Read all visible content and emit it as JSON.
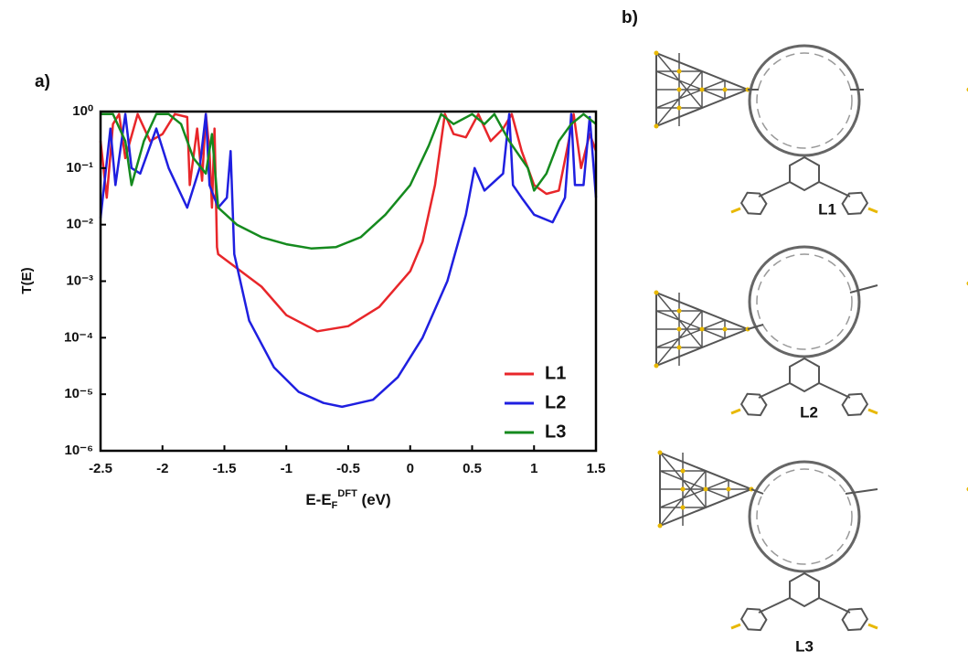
{
  "chart_data": {
    "type": "line",
    "panel_label": "a)",
    "y_label": "T(E)",
    "x_label": {
      "base": "E-E",
      "sub": "F",
      "sup": "DFT",
      "unit": "(eV)"
    },
    "xlim": [
      -2.5,
      1.5
    ],
    "xticks": [
      -2.5,
      -2,
      -1.5,
      -1,
      -0.5,
      0,
      0.5,
      1,
      1.5
    ],
    "ylim": [
      1e-06,
      1
    ],
    "log_y": true,
    "grid": false,
    "legend": "lower right",
    "yticks": [
      {
        "value": 1,
        "label": "10⁰"
      },
      {
        "value": 0.1,
        "label": "10⁻¹"
      },
      {
        "value": 0.01,
        "label": "10⁻²"
      },
      {
        "value": 0.001,
        "label": "10⁻³"
      },
      {
        "value": 0.0001,
        "label": "10⁻⁴"
      },
      {
        "value": 1e-05,
        "label": "10⁻⁵"
      },
      {
        "value": 1e-06,
        "label": "10⁻⁶"
      }
    ],
    "series": [
      {
        "name": "L1",
        "color": "#e8262a",
        "x": [
          -2.5,
          -2.45,
          -2.4,
          -2.35,
          -2.3,
          -2.2,
          -2.1,
          -2.0,
          -1.9,
          -1.8,
          -1.78,
          -1.72,
          -1.68,
          -1.65,
          -1.62,
          -1.6,
          -1.58,
          -1.56,
          -1.55,
          -1.2,
          -1.0,
          -0.75,
          -0.5,
          -0.25,
          0,
          0.1,
          0.2,
          0.28,
          0.35,
          0.45,
          0.55,
          0.65,
          0.75,
          0.82,
          0.9,
          1.0,
          1.1,
          1.2,
          1.28,
          1.32,
          1.38,
          1.45,
          1.5
        ],
        "values": [
          0.3,
          0.03,
          0.6,
          0.9,
          0.15,
          0.9,
          0.3,
          0.4,
          0.9,
          0.8,
          0.05,
          0.5,
          0.06,
          0.9,
          0.2,
          0.02,
          0.5,
          0.004,
          0.003,
          0.0008,
          0.00025,
          0.00013,
          0.00016,
          0.00035,
          0.0015,
          0.005,
          0.05,
          0.9,
          0.4,
          0.35,
          0.9,
          0.3,
          0.5,
          0.9,
          0.2,
          0.05,
          0.035,
          0.04,
          0.3,
          0.9,
          0.1,
          0.4,
          0.2
        ]
      },
      {
        "name": "L2",
        "color": "#1f1fe0",
        "x": [
          -2.5,
          -2.42,
          -2.38,
          -2.3,
          -2.25,
          -2.18,
          -2.05,
          -1.95,
          -1.8,
          -1.7,
          -1.65,
          -1.62,
          -1.55,
          -1.48,
          -1.45,
          -1.42,
          -1.3,
          -1.1,
          -0.9,
          -0.7,
          -0.55,
          -0.3,
          -0.1,
          0.1,
          0.3,
          0.45,
          0.52,
          0.6,
          0.75,
          0.8,
          0.83,
          0.9,
          1.0,
          1.15,
          1.25,
          1.3,
          1.33,
          1.4,
          1.45,
          1.5
        ],
        "values": [
          0.013,
          0.5,
          0.05,
          0.9,
          0.1,
          0.08,
          0.5,
          0.1,
          0.02,
          0.1,
          0.9,
          0.05,
          0.02,
          0.03,
          0.2,
          0.003,
          0.0002,
          3e-05,
          1.1e-05,
          7e-06,
          6e-06,
          8e-06,
          2e-05,
          0.0001,
          0.001,
          0.015,
          0.1,
          0.04,
          0.08,
          0.9,
          0.05,
          0.03,
          0.015,
          0.011,
          0.03,
          0.9,
          0.05,
          0.05,
          0.8,
          0.03
        ]
      },
      {
        "name": "L3",
        "color": "#158a1e",
        "x": [
          -2.5,
          -2.4,
          -2.3,
          -2.25,
          -2.15,
          -2.05,
          -1.95,
          -1.85,
          -1.75,
          -1.65,
          -1.6,
          -1.55,
          -1.4,
          -1.2,
          -1.0,
          -0.8,
          -0.6,
          -0.4,
          -0.2,
          0,
          0.15,
          0.25,
          0.35,
          0.5,
          0.6,
          0.68,
          0.8,
          0.95,
          1.0,
          1.1,
          1.2,
          1.3,
          1.4,
          1.5
        ],
        "values": [
          0.9,
          0.9,
          0.3,
          0.05,
          0.3,
          0.9,
          0.9,
          0.6,
          0.15,
          0.08,
          0.4,
          0.02,
          0.01,
          0.006,
          0.0045,
          0.0038,
          0.004,
          0.006,
          0.015,
          0.05,
          0.25,
          0.9,
          0.6,
          0.9,
          0.6,
          0.9,
          0.3,
          0.1,
          0.04,
          0.08,
          0.3,
          0.6,
          0.9,
          0.6
        ]
      }
    ]
  },
  "panel_b": {
    "panel_label": "b)",
    "molecules": [
      "L1",
      "L2",
      "L3"
    ]
  }
}
